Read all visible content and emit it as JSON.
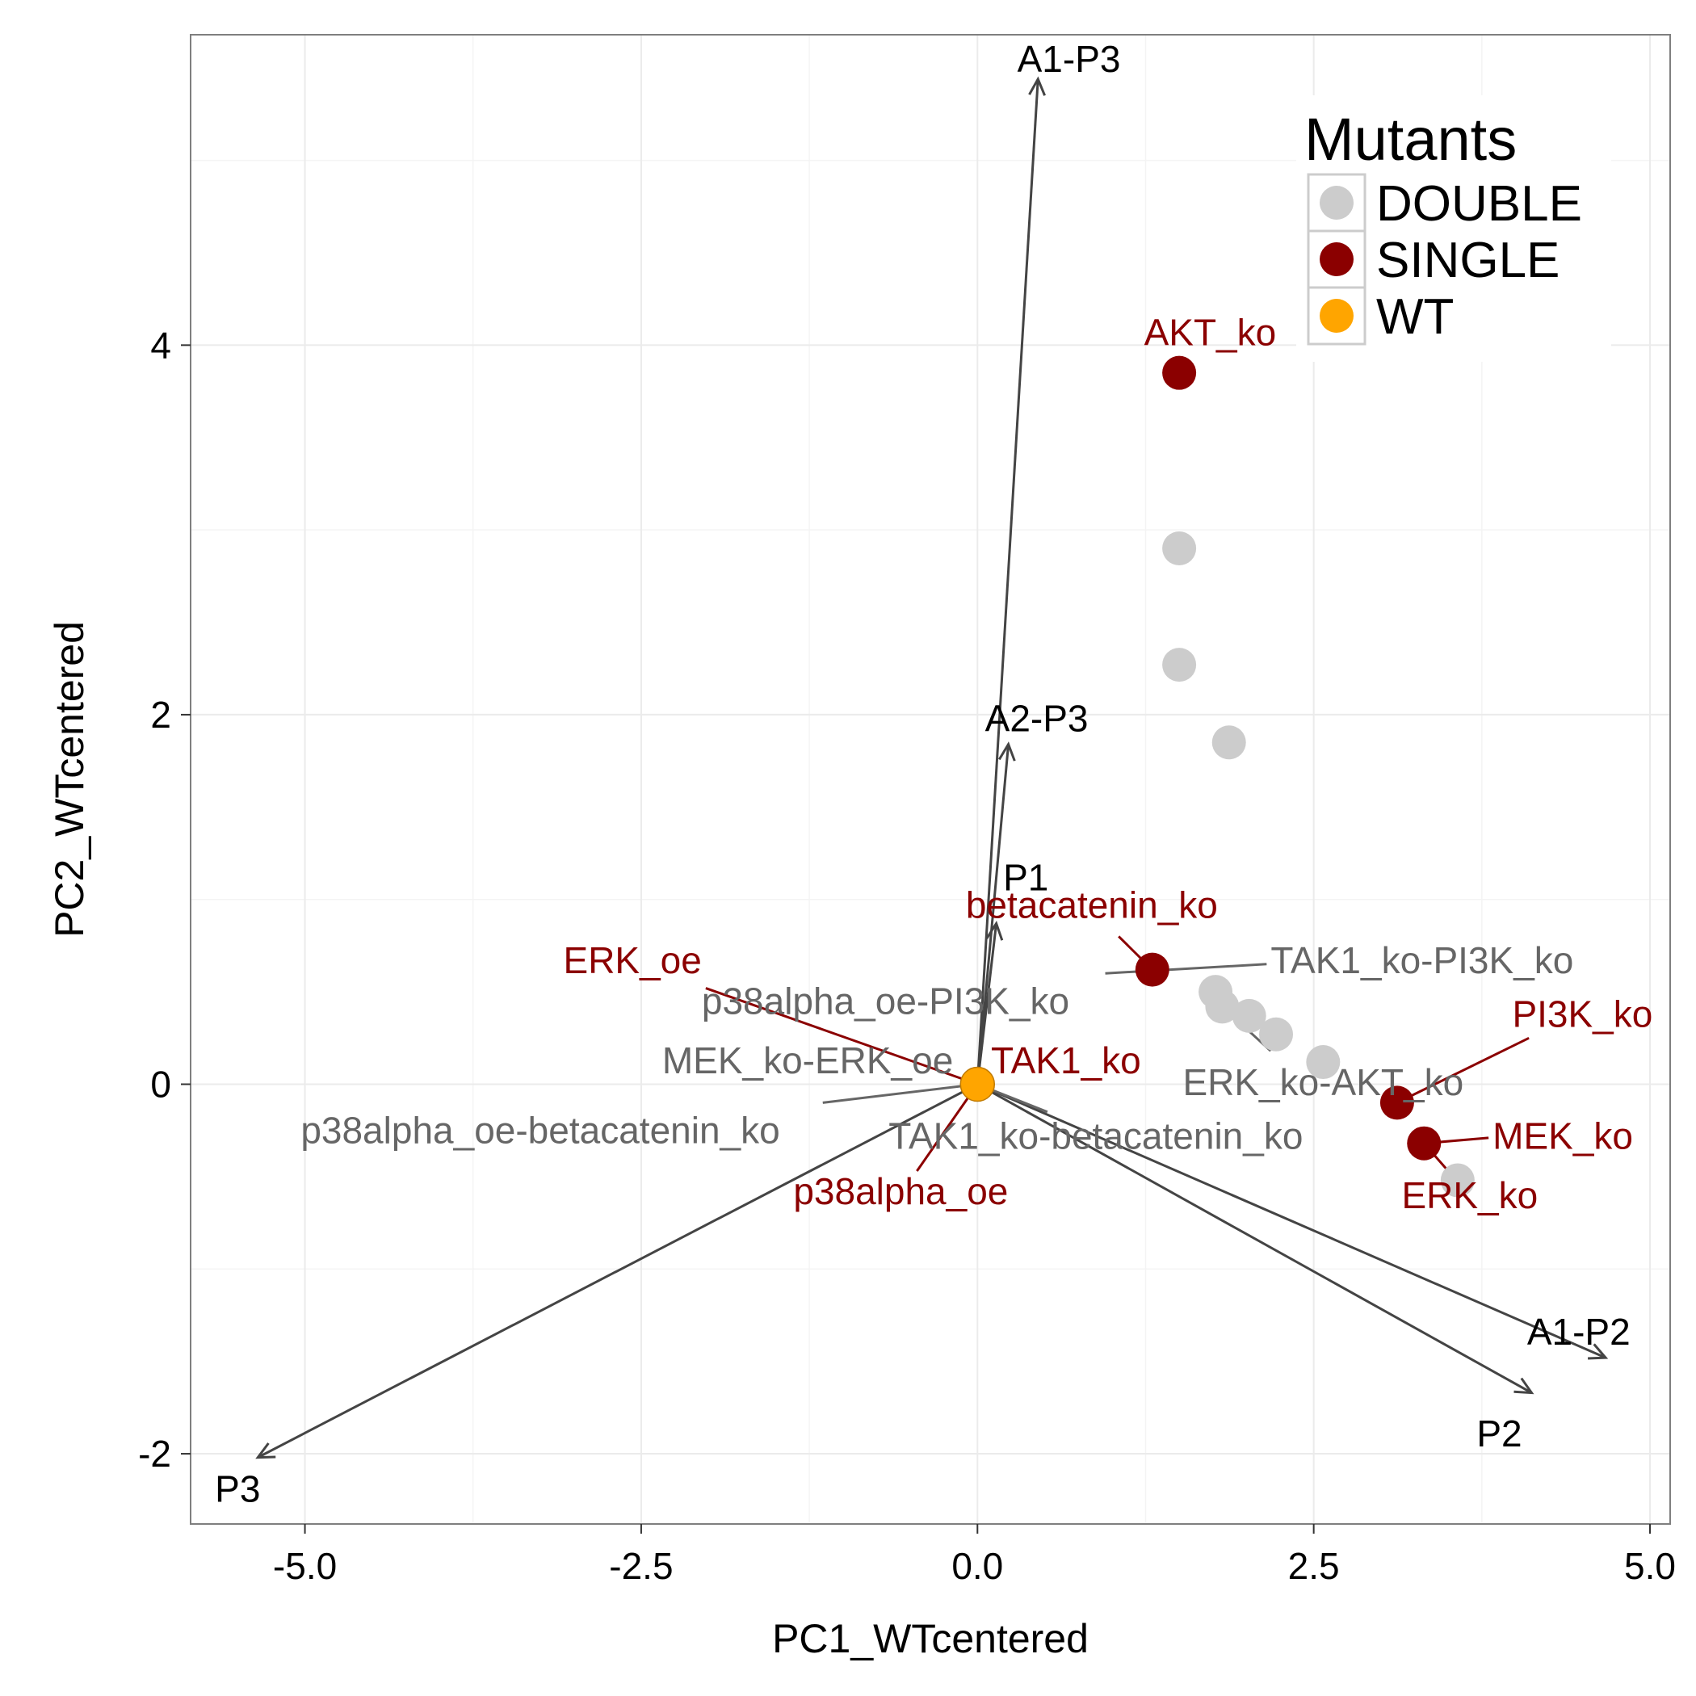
{
  "chart_data": {
    "type": "scatter",
    "xlabel": "PC1_WTcentered",
    "ylabel": "PC2_WTcentered",
    "xlim": [
      -5.85,
      5.15
    ],
    "ylim": [
      -2.38,
      5.68
    ],
    "x_ticks": [
      -5.0,
      -2.5,
      0.0,
      2.5,
      5.0
    ],
    "x_tick_labels": [
      "-5.0",
      "-2.5",
      "0.0",
      "2.5",
      "5.0"
    ],
    "y_ticks": [
      -2,
      0,
      2,
      4
    ],
    "y_tick_labels": [
      "-2",
      "0",
      "2",
      "4"
    ],
    "grid": true,
    "colors": {
      "DOUBLE": "#cccccc",
      "SINGLE": "#8b0000",
      "WT": "#ffa500",
      "double_label": "#666666",
      "vector": "#444444"
    },
    "legend": {
      "title": "Mutants",
      "position": "top-right",
      "entries": [
        {
          "label": "DOUBLE",
          "group": "DOUBLE"
        },
        {
          "label": "SINGLE",
          "group": "SINGLE"
        },
        {
          "label": "WT",
          "group": "WT"
        }
      ]
    },
    "points": [
      {
        "group": "DOUBLE",
        "x": 1.5,
        "y": 2.9
      },
      {
        "group": "DOUBLE",
        "x": 1.5,
        "y": 2.27
      },
      {
        "group": "DOUBLE",
        "x": 1.87,
        "y": 1.85
      },
      {
        "group": "DOUBLE",
        "x": 1.77,
        "y": 0.5
      },
      {
        "group": "DOUBLE",
        "x": 1.82,
        "y": 0.42
      },
      {
        "group": "DOUBLE",
        "x": 2.02,
        "y": 0.37
      },
      {
        "group": "DOUBLE",
        "x": 2.22,
        "y": 0.27
      },
      {
        "group": "DOUBLE",
        "x": 2.57,
        "y": 0.12
      },
      {
        "group": "DOUBLE",
        "x": 3.57,
        "y": -0.52
      },
      {
        "group": "SINGLE",
        "x": 1.5,
        "y": 3.85
      },
      {
        "group": "SINGLE",
        "x": 1.3,
        "y": 0.62
      },
      {
        "group": "SINGLE",
        "x": 3.12,
        "y": -0.1
      },
      {
        "group": "SINGLE",
        "x": 3.32,
        "y": -0.32
      },
      {
        "group": "WT",
        "x": 0.0,
        "y": 0.0
      }
    ],
    "point_labels": [
      {
        "text": "AKT_ko",
        "group": "SINGLE",
        "x": 1.73,
        "y": 4.0,
        "anchor": "middle"
      },
      {
        "text": "betacatenin_ko",
        "group": "SINGLE",
        "x": 0.85,
        "y": 0.9,
        "anchor": "middle",
        "leader": [
          1.3,
          0.62,
          1.05,
          0.8
        ]
      },
      {
        "text": "ERK_oe",
        "group": "SINGLE",
        "x": -2.05,
        "y": 0.6,
        "anchor": "end",
        "leader": [
          0.0,
          0.0,
          -2.02,
          0.52
        ]
      },
      {
        "text": "TAK1_ko",
        "group": "SINGLE",
        "x": 0.1,
        "y": 0.06,
        "anchor": "start"
      },
      {
        "text": "p38alpha_oe",
        "group": "SINGLE",
        "x": -0.57,
        "y": -0.65,
        "anchor": "middle",
        "leader": [
          0.0,
          0.0,
          -0.45,
          -0.47
        ]
      },
      {
        "text": "PI3K_ko",
        "group": "SINGLE",
        "x": 5.02,
        "y": 0.31,
        "anchor": "end",
        "leader": [
          3.12,
          -0.1,
          4.1,
          0.25
        ]
      },
      {
        "text": "MEK_ko",
        "group": "SINGLE",
        "x": 3.83,
        "y": -0.35,
        "anchor": "start",
        "leader": [
          3.32,
          -0.32,
          3.8,
          -0.29
        ]
      },
      {
        "text": "ERK_ko",
        "group": "SINGLE",
        "x": 3.66,
        "y": -0.67,
        "anchor": "middle",
        "leader": [
          3.32,
          -0.32,
          3.5,
          -0.47
        ]
      },
      {
        "text": "TAK1_ko-PI3K_ko",
        "group": "DOUBLE",
        "x": 2.18,
        "y": 0.6,
        "anchor": "start",
        "leader": [
          0.95,
          0.6,
          2.15,
          0.65
        ]
      },
      {
        "text": "p38alpha_oe-PI3K_ko",
        "group": "DOUBLE",
        "x": -2.05,
        "y": 0.38,
        "anchor": "start"
      },
      {
        "text": "MEK_ko-ERK_oe",
        "group": "DOUBLE",
        "x": -0.18,
        "y": 0.06,
        "anchor": "end",
        "leader": [
          0.0,
          0.0,
          -1.15,
          -0.1
        ]
      },
      {
        "text": "ERK_ko-AKT_ko",
        "group": "DOUBLE",
        "x": 2.57,
        "y": -0.06,
        "anchor": "middle",
        "leader": [
          1.82,
          0.42,
          2.18,
          0.18
        ]
      },
      {
        "text": "p38alpha_oe-betacatenin_ko",
        "group": "DOUBLE",
        "x": -3.25,
        "y": -0.32,
        "anchor": "middle"
      },
      {
        "text": "TAK1_ko-betacatenin_ko",
        "group": "DOUBLE",
        "x": 0.88,
        "y": -0.35,
        "anchor": "middle",
        "leader": [
          0.0,
          0.0,
          0.52,
          -0.15
        ]
      }
    ],
    "vectors": [
      {
        "name": "A1-P3",
        "x": 0.45,
        "y": 5.44,
        "label_x": 0.68,
        "label_y": 5.48,
        "anchor": "middle"
      },
      {
        "name": "A2-P3",
        "x": 0.23,
        "y": 1.84,
        "label_x": 0.44,
        "label_y": 1.91,
        "anchor": "middle"
      },
      {
        "name": "P1",
        "x": 0.14,
        "y": 0.87,
        "label_x": 0.36,
        "label_y": 1.05,
        "anchor": "middle"
      },
      {
        "name": "A1-P2",
        "x": 4.67,
        "y": -1.48,
        "label_x": 4.47,
        "label_y": -1.41,
        "anchor": "middle"
      },
      {
        "name": "P2",
        "x": 4.12,
        "y": -1.67,
        "label_x": 3.88,
        "label_y": -1.96,
        "anchor": "middle"
      },
      {
        "name": "P3",
        "x": -5.35,
        "y": -2.02,
        "label_x": -5.5,
        "label_y": -2.26,
        "anchor": "middle"
      }
    ]
  }
}
